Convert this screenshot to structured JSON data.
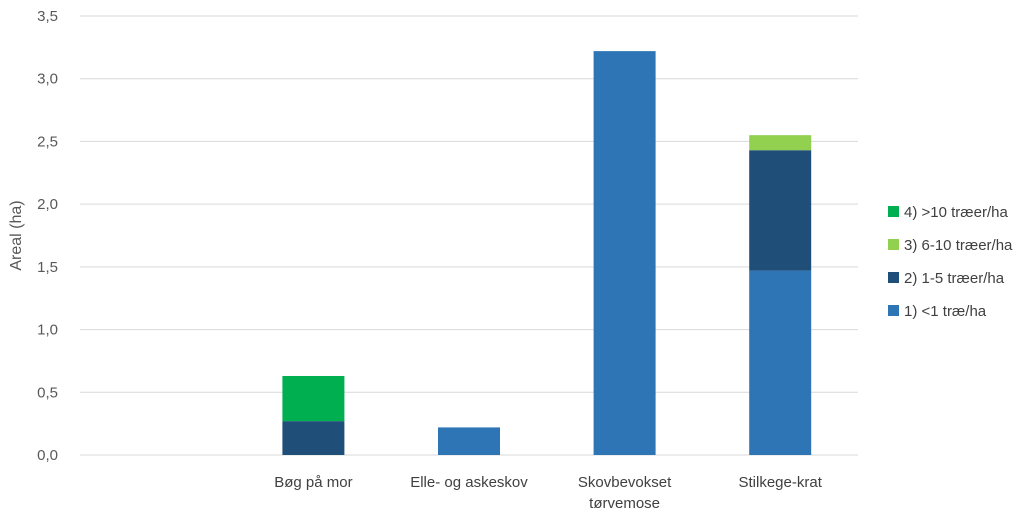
{
  "chart_data": {
    "type": "bar",
    "stacked": true,
    "ylabel": "Areal (ha)",
    "xlabel": "",
    "ylim": [
      0,
      3.5
    ],
    "yticks": [
      "0,0",
      "0,5",
      "1,0",
      "1,5",
      "2,0",
      "2,5",
      "3,0",
      "3,5"
    ],
    "grid": true,
    "legend_position": "right",
    "categories": [
      "",
      "Bøg på mor",
      "Elle- og askeskov",
      "Skovbevokset tørvemose",
      "Stilkege-krat"
    ],
    "category_lines": [
      [
        ""
      ],
      [
        "Bøg på mor"
      ],
      [
        "Elle- og askeskov"
      ],
      [
        "Skovbevokset",
        "tørvemose"
      ],
      [
        "Stilkege-krat"
      ]
    ],
    "series": [
      {
        "name": "1) <1 træ/ha",
        "color": "#2E75B6",
        "values": [
          0,
          0,
          0.22,
          3.22,
          1.47
        ]
      },
      {
        "name": "2) 1-5 træer/ha",
        "color": "#1F4E79",
        "values": [
          0,
          0.27,
          0,
          0,
          0.96
        ]
      },
      {
        "name": "3) 6-10 træer/ha",
        "color": "#92D050",
        "values": [
          0,
          0,
          0,
          0,
          0.12
        ]
      },
      {
        "name": "4) >10 træer/ha",
        "color": "#00B050",
        "values": [
          0,
          0.36,
          0,
          0,
          0
        ]
      }
    ]
  }
}
